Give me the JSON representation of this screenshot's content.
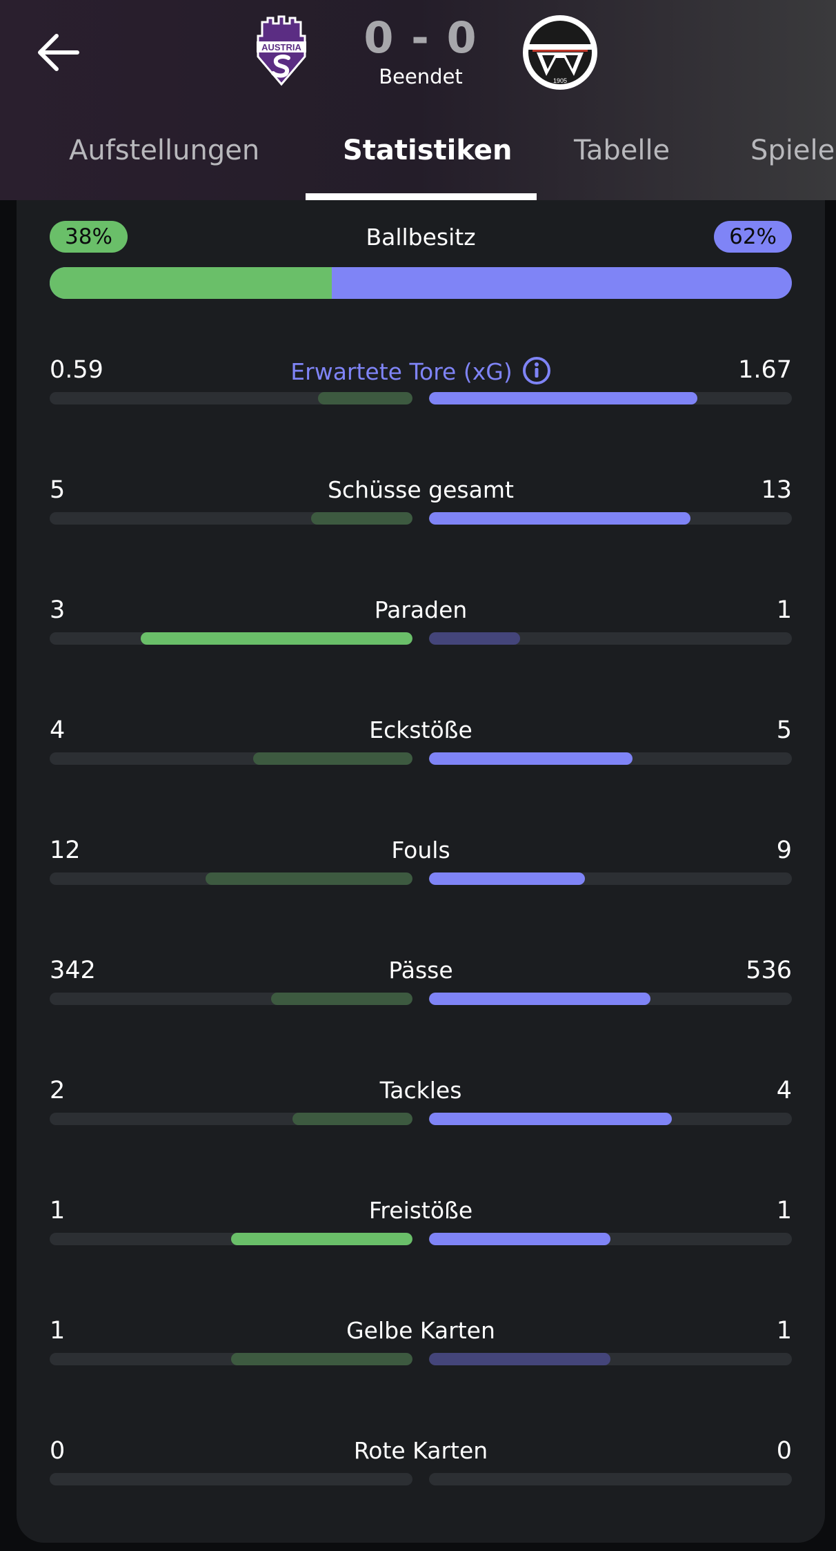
{
  "match": {
    "score": "0 - 0",
    "status": "Beendet",
    "home_logo_text": "AUSTRIA",
    "away_logo_year": "1905"
  },
  "tabs": [
    {
      "label": "Aufstellungen",
      "active": false
    },
    {
      "label": "Statistiken",
      "active": true
    },
    {
      "label": "Tabelle",
      "active": false
    },
    {
      "label": "Spiele",
      "active": false
    }
  ],
  "colors": {
    "home": "#6abf69",
    "away": "#7f84f6",
    "accent": "#7f84f6"
  },
  "possession": {
    "label": "Ballbesitz",
    "home": "38%",
    "away": "62%",
    "home_fraction": 0.38
  },
  "stats": [
    {
      "label": "Erwartete Tore (xG)",
      "home": "0.59",
      "away": "1.67",
      "home_fraction": 0.26,
      "away_fraction": 0.74,
      "leader": "away",
      "info": true
    },
    {
      "label": "Schüsse gesamt",
      "home": "5",
      "away": "13",
      "home_fraction": 0.28,
      "away_fraction": 0.72,
      "leader": "away"
    },
    {
      "label": "Paraden",
      "home": "3",
      "away": "1",
      "home_fraction": 0.75,
      "away_fraction": 0.25,
      "leader": "home"
    },
    {
      "label": "Eckstöße",
      "home": "4",
      "away": "5",
      "home_fraction": 0.44,
      "away_fraction": 0.56,
      "leader": "away"
    },
    {
      "label": "Fouls",
      "home": "12",
      "away": "9",
      "home_fraction": 0.57,
      "away_fraction": 0.43,
      "leader": "away"
    },
    {
      "label": "Pässe",
      "home": "342",
      "away": "536",
      "home_fraction": 0.39,
      "away_fraction": 0.61,
      "leader": "away"
    },
    {
      "label": "Tackles",
      "home": "2",
      "away": "4",
      "home_fraction": 0.33,
      "away_fraction": 0.67,
      "leader": "away"
    },
    {
      "label": "Freistöße",
      "home": "1",
      "away": "1",
      "home_fraction": 0.5,
      "away_fraction": 0.5,
      "leader": "both"
    },
    {
      "label": "Gelbe Karten",
      "home": "1",
      "away": "1",
      "home_fraction": 0.5,
      "away_fraction": 0.5,
      "leader": "none"
    },
    {
      "label": "Rote Karten",
      "home": "0",
      "away": "0",
      "home_fraction": 0,
      "away_fraction": 0,
      "leader": "none"
    }
  ]
}
